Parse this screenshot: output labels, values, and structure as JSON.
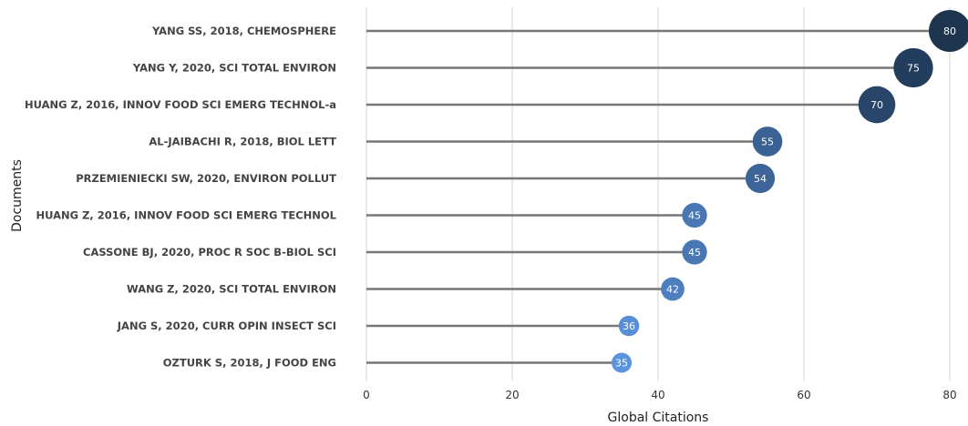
{
  "chart_data": {
    "type": "lollipop",
    "xlabel": "Global Citations",
    "ylabel": "Documents",
    "xlim": [
      0,
      80
    ],
    "xticks": [
      0,
      20,
      40,
      60,
      80
    ],
    "grid": true,
    "categories": [
      "YANG SS, 2018, CHEMOSPHERE",
      "YANG Y, 2020, SCI TOTAL ENVIRON",
      "HUANG Z, 2016, INNOV FOOD SCI EMERG TECHNOL-a",
      "AL-JAIBACHI R, 2018, BIOL LETT",
      "PRZEMIENIECKI SW, 2020, ENVIRON POLLUT",
      "HUANG Z, 2016, INNOV FOOD SCI EMERG TECHNOL",
      "CASSONE BJ, 2020, PROC R SOC B-BIOL SCI",
      "WANG Z, 2020, SCI TOTAL ENVIRON",
      "JANG S, 2020, CURR OPIN INSECT SCI",
      "OZTURK S, 2018, J FOOD ENG"
    ],
    "values": [
      80,
      75,
      70,
      55,
      54,
      45,
      45,
      42,
      36,
      35
    ],
    "colors": {
      "high": "#1e3550",
      "low": "#5b93de",
      "stem": "#777777",
      "grid": "#e3e3e3"
    }
  }
}
